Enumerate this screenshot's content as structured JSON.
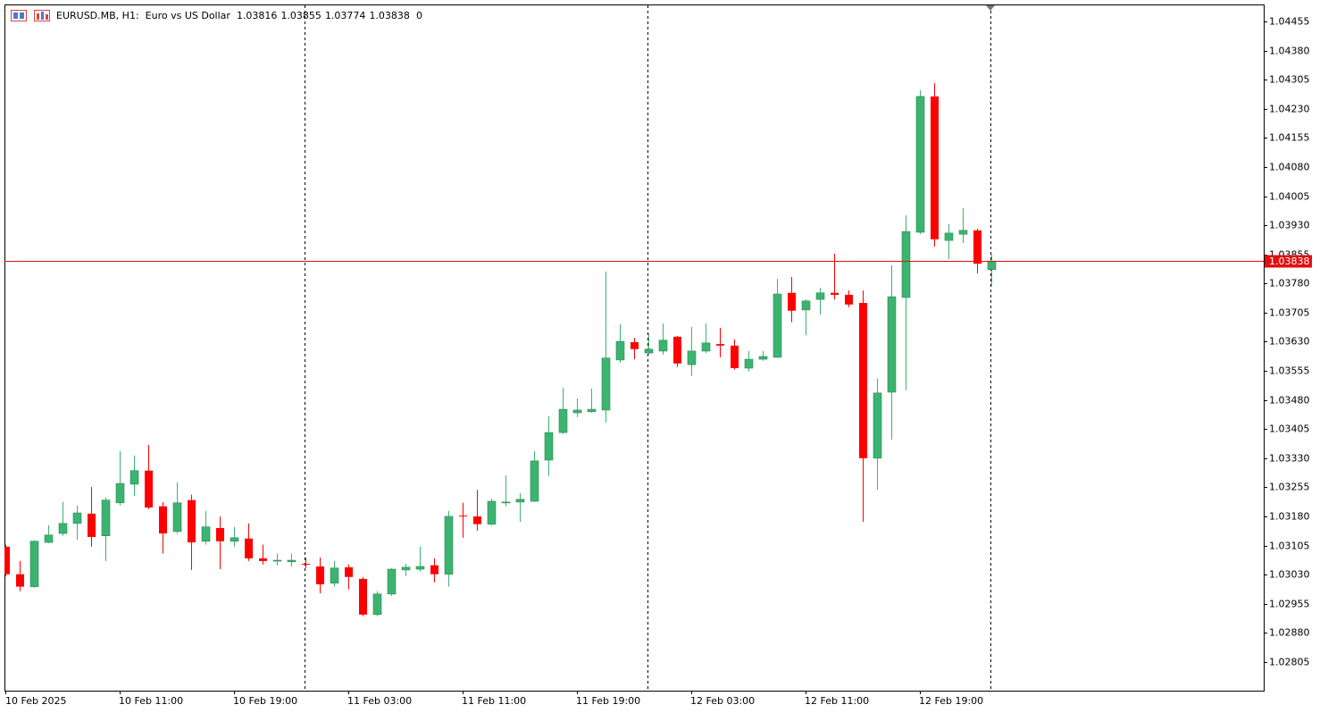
{
  "chart_data": {
    "type": "candlestick",
    "title": "EURUSD.MB, H1:",
    "subtitle": "Euro vs US Dollar",
    "info_value": 0,
    "categories": [
      "10 Feb 2025",
      null,
      null,
      null,
      null,
      null,
      null,
      null,
      "10 Feb 11:00",
      null,
      null,
      null,
      null,
      null,
      null,
      null,
      "10 Feb 19:00",
      null,
      null,
      null,
      null,
      null,
      null,
      null,
      "11 Feb 03:00",
      null,
      null,
      null,
      null,
      null,
      null,
      null,
      "11 Feb 11:00",
      null,
      null,
      null,
      null,
      null,
      null,
      null,
      "11 Feb 19:00",
      null,
      null,
      null,
      null,
      null,
      null,
      null,
      "12 Feb 03:00",
      null,
      null,
      null,
      null,
      null,
      null,
      null,
      "12 Feb 11:00",
      null,
      null,
      null,
      null,
      null,
      null,
      null,
      "12 Feb 19:00",
      null,
      null,
      null,
      null,
      null
    ],
    "open": [
      1.03102,
      1.03031,
      1.02999,
      1.03113,
      1.03136,
      1.03162,
      1.03187,
      1.0313,
      1.03215,
      1.03263,
      1.03298,
      1.03206,
      1.03141,
      1.03222,
      1.03116,
      1.0315,
      1.03116,
      1.03123,
      1.03072,
      1.03065,
      1.03063,
      1.03058,
      1.03051,
      1.03008,
      1.03049,
      1.03019,
      1.02927,
      1.0298,
      1.03042,
      1.03044,
      1.03054,
      1.03031,
      1.03182,
      1.0318,
      1.0316,
      1.03215,
      1.03217,
      1.03219,
      1.03325,
      1.03396,
      1.03447,
      1.0345,
      1.03454,
      1.03583,
      1.03629,
      1.03601,
      1.03606,
      1.03643,
      1.03571,
      1.03606,
      1.03624,
      1.0362,
      1.03562,
      1.03585,
      1.0359,
      1.03756,
      1.03712,
      1.03739,
      1.03756,
      1.03751,
      1.0373,
      1.0333,
      1.035,
      1.03744,
      1.03912,
      1.04262,
      1.03891,
      1.03907,
      1.03917,
      1.03816
    ],
    "high": [
      1.03107,
      1.03065,
      1.03118,
      1.03157,
      1.03217,
      1.03208,
      1.03256,
      1.03229,
      1.03348,
      1.03337,
      1.03364,
      1.03217,
      1.03268,
      1.03236,
      1.03194,
      1.0318,
      1.03153,
      1.03162,
      1.03107,
      1.03084,
      1.03084,
      1.03074,
      1.03074,
      1.03065,
      1.03056,
      1.03024,
      1.02987,
      1.03047,
      1.03058,
      1.03102,
      1.03072,
      1.03194,
      1.03215,
      1.03249,
      1.03226,
      1.03286,
      1.0324,
      1.03348,
      1.03438,
      1.03512,
      1.03484,
      1.03509,
      1.03811,
      1.03675,
      1.0364,
      1.0365,
      1.03677,
      1.03645,
      1.03668,
      1.03677,
      1.03666,
      1.03636,
      1.03606,
      1.03606,
      1.03792,
      1.03797,
      1.03739,
      1.03769,
      1.03857,
      1.03762,
      1.03762,
      1.03535,
      1.03827,
      1.03956,
      1.04278,
      1.04296,
      1.03933,
      1.03974,
      1.03921,
      1.03855
    ],
    "low": [
      1.03026,
      1.02987,
      1.02996,
      1.03111,
      1.0313,
      1.0312,
      1.03102,
      1.03065,
      1.03208,
      1.03233,
      1.03199,
      1.03084,
      1.03136,
      1.03042,
      1.03107,
      1.03044,
      1.03102,
      1.03065,
      1.03056,
      1.03054,
      1.03051,
      1.03047,
      1.02982,
      1.02999,
      1.02992,
      1.02923,
      1.02923,
      1.02975,
      1.03026,
      1.03038,
      1.0301,
      1.02999,
      1.03125,
      1.03143,
      1.03157,
      1.03206,
      1.03166,
      1.03217,
      1.03284,
      1.03392,
      1.03436,
      1.03447,
      1.03422,
      1.03576,
      1.03585,
      1.03597,
      1.03597,
      1.03565,
      1.03542,
      1.03601,
      1.0359,
      1.03558,
      1.03553,
      1.03581,
      1.03588,
      1.0368,
      1.03647,
      1.037,
      1.03739,
      1.03719,
      1.03166,
      1.03249,
      1.03378,
      1.03505,
      1.03907,
      1.03875,
      1.03843,
      1.03884,
      1.03806,
      1.03774
    ],
    "close": [
      1.03031,
      1.02999,
      1.03116,
      1.03132,
      1.03162,
      1.03189,
      1.03127,
      1.03222,
      1.03265,
      1.03298,
      1.03203,
      1.03136,
      1.03215,
      1.03113,
      1.03153,
      1.03116,
      1.03125,
      1.03072,
      1.03065,
      1.03067,
      1.03067,
      1.03056,
      1.03005,
      1.03047,
      1.03024,
      1.02927,
      1.0298,
      1.03044,
      1.03049,
      1.03051,
      1.03031,
      1.0318,
      1.0318,
      1.0316,
      1.03219,
      1.03217,
      1.03224,
      1.03323,
      1.03396,
      1.03456,
      1.03454,
      1.03456,
      1.03588,
      1.03631,
      1.03611,
      1.03611,
      1.03634,
      1.03574,
      1.03606,
      1.03627,
      1.0362,
      1.03562,
      1.03585,
      1.03592,
      1.03753,
      1.0371,
      1.03735,
      1.03756,
      1.03751,
      1.03726,
      1.0333,
      1.03498,
      1.03746,
      1.03914,
      1.04262,
      1.03894,
      1.0391,
      1.03917,
      1.03831,
      1.03838
    ],
    "up_color": "#3cb371",
    "down_color": "#ff0000",
    "current_price": 1.03838,
    "price_line_color": "#e01010",
    "ylim": [
      1.02731,
      1.04499
    ],
    "yticks": [
      1.04455,
      {
        "value": 1.0438,
        "label": "1.04380"
      },
      1.04305,
      {
        "value": 1.0423,
        "label": "1.04230"
      },
      1.04155,
      {
        "value": 1.0408,
        "label": "1.04080"
      },
      1.04005,
      {
        "value": 1.0393,
        "label": "1.03930"
      },
      1.03855,
      {
        "value": 1.0378,
        "label": "1.03780"
      },
      1.03705,
      {
        "value": 1.0363,
        "label": "1.03630"
      },
      1.03555,
      {
        "value": 1.0348,
        "label": "1.03480"
      },
      1.03405,
      {
        "value": 1.0333,
        "label": "1.03330"
      },
      1.03255,
      {
        "value": 1.0318,
        "label": "1.03180"
      },
      1.03105,
      {
        "value": 1.0303,
        "label": "1.03030"
      },
      1.02955,
      {
        "value": 1.0288,
        "label": "1.02880"
      },
      1.02805
    ],
    "grid": false
  }
}
